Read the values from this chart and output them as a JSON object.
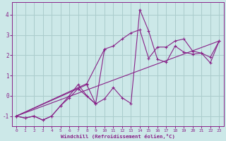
{
  "xlabel": "Windchill (Refroidissement éolien,°C)",
  "bg_color": "#cce8e8",
  "grid_color": "#aacccc",
  "line_color": "#882288",
  "xlim": [
    -0.5,
    23.5
  ],
  "ylim": [
    -1.5,
    4.6
  ],
  "xticks": [
    0,
    1,
    2,
    3,
    4,
    5,
    6,
    7,
    8,
    9,
    10,
    11,
    12,
    13,
    14,
    15,
    16,
    17,
    18,
    19,
    20,
    21,
    22,
    23
  ],
  "yticks": [
    -1,
    0,
    1,
    2,
    3,
    4
  ],
  "lines": [
    {
      "x": [
        0,
        1,
        2,
        3,
        4,
        5,
        6,
        7,
        8,
        9,
        10,
        11,
        12,
        13,
        14,
        15,
        16,
        17,
        18,
        19,
        20,
        21,
        22,
        23
      ],
      "y": [
        -1.0,
        -1.1,
        -1.0,
        -1.2,
        -1.0,
        -0.5,
        -0.1,
        0.35,
        0.55,
        -0.4,
        -0.15,
        0.4,
        -0.1,
        -0.38,
        4.25,
        3.2,
        1.8,
        1.65,
        2.45,
        2.15,
        2.05,
        2.1,
        1.62,
        2.7
      ]
    },
    {
      "x": [
        0,
        1,
        2,
        3,
        4,
        5,
        6,
        7,
        8,
        9,
        10,
        11,
        12,
        13,
        14,
        15,
        16,
        17,
        18,
        19,
        20,
        21,
        22,
        23
      ],
      "y": [
        -1.0,
        -1.1,
        -1.0,
        -1.2,
        -1.0,
        -0.5,
        0.0,
        0.55,
        0.0,
        -0.4,
        2.3,
        2.45,
        2.8,
        3.1,
        3.25,
        1.85,
        2.4,
        2.4,
        2.7,
        2.8,
        2.2,
        2.1,
        1.9,
        2.7
      ]
    },
    {
      "x": [
        0,
        8,
        10
      ],
      "y": [
        -1.0,
        0.6,
        2.3
      ]
    },
    {
      "x": [
        0,
        7,
        9
      ],
      "y": [
        -1.0,
        0.35,
        -0.4
      ]
    },
    {
      "x": [
        0,
        23
      ],
      "y": [
        -1.0,
        2.7
      ]
    }
  ]
}
